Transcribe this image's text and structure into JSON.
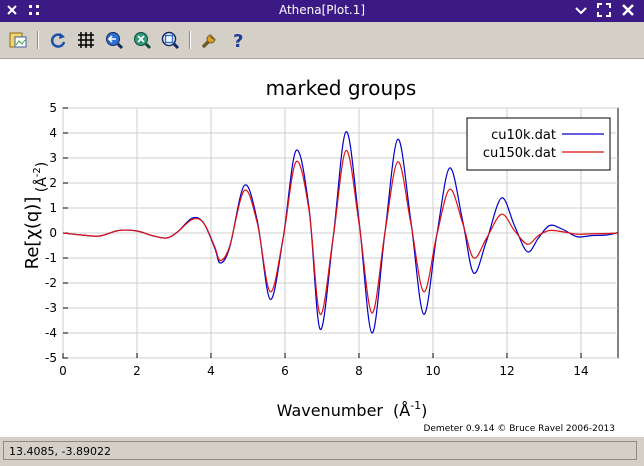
{
  "window": {
    "title": "Athena[Plot.1]",
    "icons": [
      "close-icon",
      "menu-grid-icon",
      "minimize-icon",
      "maximize-icon",
      "close-window-icon"
    ]
  },
  "toolbar": {
    "buttons": [
      "save-image-icon",
      "refresh-icon",
      "grid-icon",
      "zoom-in-icon",
      "zoom-out-icon",
      "zoom-fit-icon",
      "settings-wrench-icon",
      "help-icon"
    ]
  },
  "status": {
    "coords": "13.4085, -3.89022"
  },
  "colors": {
    "series_1": "#0000cc",
    "series_2": "#dd1111",
    "titlebar": "#3c1a86",
    "toolbar": "#d4d0c8"
  },
  "chart_data": {
    "type": "line",
    "title": "marked groups",
    "xlabel_text": "Wavenumber",
    "xlabel_unit_base": "(Å",
    "xlabel_unit_sup": "-1",
    "xlabel_unit_close": ")",
    "ylabel_text": "Re[χ(q)]",
    "ylabel_unit_base": "(Å",
    "ylabel_unit_sup": "-2",
    "ylabel_unit_close": ")",
    "xlim": [
      0,
      15
    ],
    "ylim": [
      -5,
      5
    ],
    "xticks": [
      0,
      2,
      4,
      6,
      8,
      10,
      12,
      14
    ],
    "yticks": [
      -5,
      -4,
      -3,
      -2,
      -1,
      0,
      1,
      2,
      3,
      4,
      5
    ],
    "grid": true,
    "legend_position": "top-right",
    "credit": "Demeter 0.9.14 © Bruce Ravel 2006-2013",
    "series": [
      {
        "name": "cu10k.dat",
        "color": "#0000cc",
        "points": [
          [
            0,
            0
          ],
          [
            0.5,
            -0.08
          ],
          [
            1.0,
            -0.12
          ],
          [
            1.5,
            0.1
          ],
          [
            2.0,
            0.08
          ],
          [
            2.4,
            -0.1
          ],
          [
            2.8,
            -0.2
          ],
          [
            3.1,
            0.05
          ],
          [
            3.5,
            0.6
          ],
          [
            3.8,
            0.4
          ],
          [
            4.1,
            -0.6
          ],
          [
            4.25,
            -1.2
          ],
          [
            4.5,
            -0.6
          ],
          [
            4.9,
            1.9
          ],
          [
            5.25,
            0.5
          ],
          [
            5.6,
            -2.65
          ],
          [
            5.95,
            -0.2
          ],
          [
            6.3,
            3.3
          ],
          [
            6.65,
            1.0
          ],
          [
            6.95,
            -3.85
          ],
          [
            7.3,
            -0.2
          ],
          [
            7.65,
            4.05
          ],
          [
            8.0,
            0.5
          ],
          [
            8.35,
            -4.0
          ],
          [
            8.7,
            0.0
          ],
          [
            9.05,
            3.75
          ],
          [
            9.4,
            0.5
          ],
          [
            9.75,
            -3.25
          ],
          [
            10.1,
            -0.1
          ],
          [
            10.45,
            2.6
          ],
          [
            10.8,
            0.5
          ],
          [
            11.1,
            -1.6
          ],
          [
            11.45,
            -0.3
          ],
          [
            11.85,
            1.4
          ],
          [
            12.2,
            0.3
          ],
          [
            12.55,
            -0.75
          ],
          [
            12.85,
            -0.2
          ],
          [
            13.15,
            0.3
          ],
          [
            13.5,
            0.15
          ],
          [
            13.9,
            -0.15
          ],
          [
            14.3,
            -0.1
          ],
          [
            14.7,
            -0.08
          ],
          [
            15.0,
            0.02
          ]
        ]
      },
      {
        "name": "cu150k.dat",
        "color": "#dd1111",
        "points": [
          [
            0,
            0
          ],
          [
            0.5,
            -0.08
          ],
          [
            1.0,
            -0.12
          ],
          [
            1.5,
            0.1
          ],
          [
            2.0,
            0.08
          ],
          [
            2.4,
            -0.1
          ],
          [
            2.8,
            -0.2
          ],
          [
            3.1,
            0.05
          ],
          [
            3.5,
            0.55
          ],
          [
            3.8,
            0.4
          ],
          [
            4.1,
            -0.55
          ],
          [
            4.25,
            -1.1
          ],
          [
            4.5,
            -0.55
          ],
          [
            4.9,
            1.7
          ],
          [
            5.25,
            0.4
          ],
          [
            5.6,
            -2.35
          ],
          [
            5.95,
            -0.2
          ],
          [
            6.3,
            2.85
          ],
          [
            6.65,
            0.9
          ],
          [
            6.95,
            -3.25
          ],
          [
            7.3,
            -0.2
          ],
          [
            7.65,
            3.3
          ],
          [
            8.0,
            0.4
          ],
          [
            8.35,
            -3.2
          ],
          [
            8.7,
            0.0
          ],
          [
            9.05,
            2.85
          ],
          [
            9.4,
            0.4
          ],
          [
            9.75,
            -2.35
          ],
          [
            10.1,
            -0.1
          ],
          [
            10.45,
            1.75
          ],
          [
            10.8,
            0.4
          ],
          [
            11.1,
            -1.0
          ],
          [
            11.45,
            -0.2
          ],
          [
            11.85,
            0.75
          ],
          [
            12.2,
            0.1
          ],
          [
            12.55,
            -0.45
          ],
          [
            12.85,
            -0.1
          ],
          [
            13.15,
            0.1
          ],
          [
            13.5,
            0.05
          ],
          [
            13.9,
            -0.05
          ],
          [
            14.3,
            -0.03
          ],
          [
            14.7,
            -0.02
          ],
          [
            15.0,
            0.0
          ]
        ]
      }
    ]
  }
}
